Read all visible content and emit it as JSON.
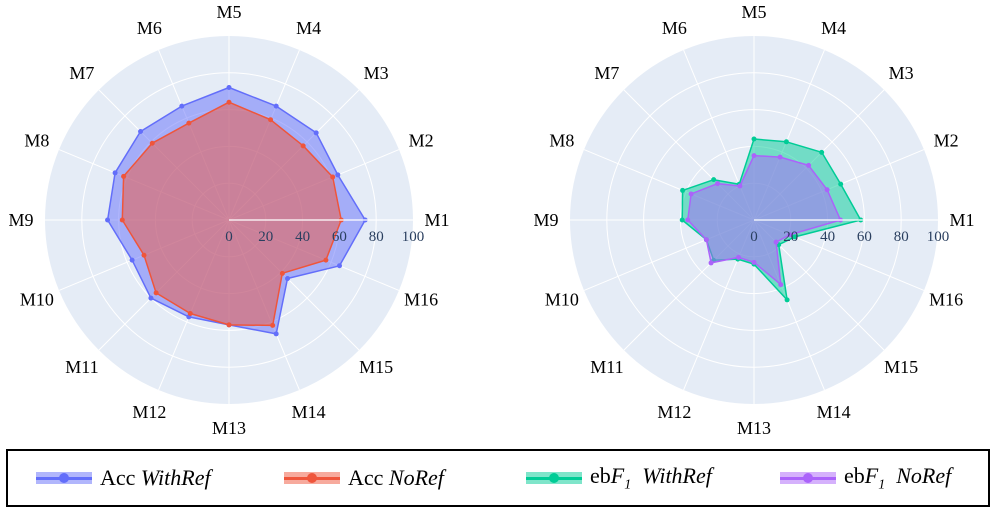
{
  "chart_data": [
    {
      "type": "radar",
      "categories": [
        "M1",
        "M2",
        "M3",
        "M4",
        "M5",
        "M6",
        "M7",
        "M8",
        "M9",
        "M10",
        "M11",
        "M12",
        "M13",
        "M14",
        "M15",
        "M16"
      ],
      "radial_range": [
        0,
        100
      ],
      "radial_ticks": [
        "0",
        "20",
        "40",
        "60",
        "80",
        "100"
      ],
      "series": [
        {
          "name": "Acc WithRef",
          "color": "#636efa",
          "values": [
            74,
            64,
            67,
            67,
            72,
            67,
            68,
            67,
            66,
            57,
            60,
            57,
            57,
            67,
            45,
            65
          ]
        },
        {
          "name": "Acc NoRef",
          "color": "#ef553b",
          "values": [
            61,
            61,
            57,
            59,
            64,
            57,
            59,
            62,
            58,
            50,
            56,
            55,
            57,
            62,
            41,
            57
          ]
        }
      ]
    },
    {
      "type": "radar",
      "categories": [
        "M1",
        "M2",
        "M3",
        "M4",
        "M5",
        "M6",
        "M7",
        "M8",
        "M9",
        "M10",
        "M11",
        "M12",
        "M13",
        "M14",
        "M15",
        "M16"
      ],
      "radial_range": [
        0,
        100
      ],
      "radial_ticks": [
        "0",
        "20",
        "40",
        "60",
        "80",
        "100"
      ],
      "series": [
        {
          "name": "ebF1 WithRef",
          "color": "#00cc96",
          "values": [
            58,
            51,
            52,
            46,
            44,
            21,
            31,
            42,
            39,
            28,
            31,
            23,
            24,
            47,
            19,
            24
          ]
        },
        {
          "name": "ebF1 NoRef",
          "color": "#ab63fa",
          "values": [
            47,
            43,
            42,
            37,
            35,
            20,
            28,
            37,
            36,
            28,
            33,
            22,
            23,
            38,
            17,
            21
          ]
        }
      ]
    }
  ],
  "legend": {
    "items": [
      {
        "base": "Acc ",
        "sub": "",
        "tail": "",
        "ital": "WithRef",
        "color": "#636efa"
      },
      {
        "base": "Acc ",
        "sub": "",
        "tail": "",
        "ital": "NoRef",
        "color": "#ef553b"
      },
      {
        "base": "eb",
        "f": "F",
        "sub": "1",
        "ital": "WithRef",
        "color": "#00cc96"
      },
      {
        "base": "eb",
        "f": "F",
        "sub": "1",
        "ital": "NoRef",
        "color": "#ab63fa"
      }
    ]
  }
}
